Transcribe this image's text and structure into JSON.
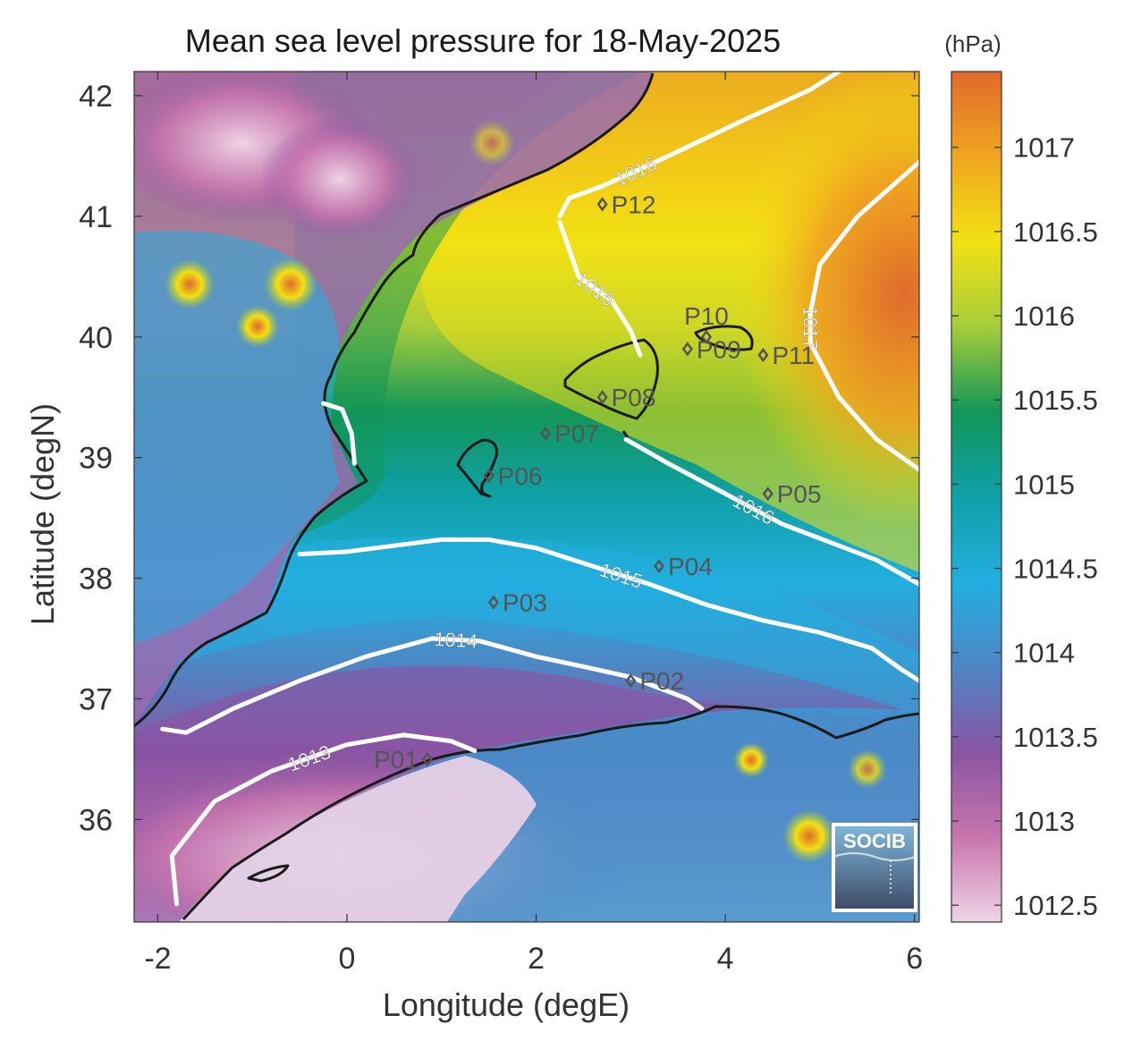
{
  "title": "Mean sea level pressure for 18-May-2025",
  "xlabel": "Longitude (degE)",
  "ylabel": "Latitude (degN)",
  "colorbar": {
    "unit": "(hPa)",
    "range": [
      1012.4,
      1017.45
    ],
    "ticks": [
      "1012.5",
      "1013",
      "1013.5",
      "1014",
      "1014.5",
      "1015",
      "1015.5",
      "1016",
      "1016.5",
      "1017"
    ],
    "colors": [
      "#efd3e6",
      "#c775ad",
      "#8a55a3",
      "#4e86c4",
      "#22aee0",
      "#0fa1a8",
      "#129658",
      "#a6cc3a",
      "#f2e114",
      "#f0a51f",
      "#e06a2c"
    ]
  },
  "logo": {
    "text": "SOCIB"
  },
  "chart_data": {
    "type": "heatmap",
    "x_ticks": [
      "-2",
      "0",
      "2",
      "4",
      "6"
    ],
    "y_ticks": [
      "36",
      "37",
      "38",
      "39",
      "40",
      "41",
      "42"
    ],
    "xlim": [
      -2.25,
      6.05
    ],
    "ylim": [
      35.15,
      42.2
    ],
    "contours": [
      {
        "label": "1013",
        "level": 1013,
        "points": [
          [
            -1.8,
            35.3
          ],
          [
            -1.85,
            35.7
          ],
          [
            -1.4,
            36.15
          ],
          [
            -0.8,
            36.4
          ],
          [
            0.0,
            36.62
          ],
          [
            0.6,
            36.7
          ],
          [
            1.1,
            36.65
          ],
          [
            1.35,
            36.57
          ]
        ]
      },
      {
        "label": "1014",
        "level": 1014,
        "points": [
          [
            -1.95,
            36.75
          ],
          [
            -1.7,
            36.72
          ],
          [
            -1.2,
            36.92
          ],
          [
            -0.5,
            37.15
          ],
          [
            0.2,
            37.35
          ],
          [
            0.9,
            37.5
          ],
          [
            1.4,
            37.48
          ],
          [
            2.0,
            37.35
          ],
          [
            2.6,
            37.25
          ],
          [
            3.0,
            37.18
          ],
          [
            3.6,
            37.0
          ],
          [
            3.75,
            36.92
          ]
        ]
      },
      {
        "label": "1015",
        "level": 1015,
        "points": [
          [
            -0.5,
            38.2
          ],
          [
            0.0,
            38.22
          ],
          [
            0.6,
            38.28
          ],
          [
            1.0,
            38.32
          ],
          [
            1.5,
            38.32
          ],
          [
            2.0,
            38.25
          ],
          [
            2.6,
            38.1
          ],
          [
            3.2,
            37.95
          ],
          [
            3.8,
            37.78
          ],
          [
            4.4,
            37.65
          ],
          [
            5.0,
            37.55
          ],
          [
            5.55,
            37.42
          ],
          [
            5.85,
            37.25
          ],
          [
            6.05,
            37.15
          ]
        ]
      },
      {
        "label": "1016",
        "level": 1016,
        "points": [
          [
            2.25,
            41.0
          ],
          [
            2.35,
            41.15
          ],
          [
            2.7,
            41.25
          ],
          [
            3.4,
            41.5
          ],
          [
            4.2,
            41.8
          ],
          [
            4.9,
            42.05
          ],
          [
            5.2,
            42.2
          ]
        ]
      },
      {
        "label": "1016",
        "level": 1016,
        "points": [
          [
            2.25,
            40.95
          ],
          [
            2.45,
            40.5
          ],
          [
            2.8,
            40.3
          ],
          [
            3.0,
            40.05
          ],
          [
            3.1,
            39.85
          ]
        ]
      },
      {
        "label": "1016",
        "level": 1016,
        "points": [
          [
            2.95,
            39.15
          ],
          [
            3.4,
            38.95
          ],
          [
            4.0,
            38.7
          ],
          [
            4.6,
            38.45
          ],
          [
            5.1,
            38.3
          ],
          [
            5.6,
            38.15
          ],
          [
            6.05,
            37.95
          ]
        ]
      },
      {
        "label": "1017",
        "level": 1017,
        "points": [
          [
            6.05,
            41.45
          ],
          [
            5.4,
            41.0
          ],
          [
            5.0,
            40.6
          ],
          [
            4.9,
            40.2
          ],
          [
            4.9,
            39.95
          ],
          [
            5.2,
            39.5
          ],
          [
            5.6,
            39.15
          ],
          [
            6.05,
            38.9
          ]
        ]
      },
      {
        "label": "",
        "level": 1015.5,
        "points": [
          [
            -0.25,
            39.45
          ],
          [
            -0.05,
            39.4
          ],
          [
            0.05,
            39.2
          ],
          [
            0.08,
            38.95
          ]
        ]
      }
    ],
    "stations": [
      {
        "label": "P01",
        "lon": 0.85,
        "lat": 36.5
      },
      {
        "label": "P02",
        "lon": 3.0,
        "lat": 37.15
      },
      {
        "label": "P03",
        "lon": 1.55,
        "lat": 37.8
      },
      {
        "label": "P04",
        "lon": 3.3,
        "lat": 38.1
      },
      {
        "label": "P05",
        "lon": 4.45,
        "lat": 38.7
      },
      {
        "label": "P06",
        "lon": 1.5,
        "lat": 38.85
      },
      {
        "label": "P07",
        "lon": 2.1,
        "lat": 39.2
      },
      {
        "label": "P08",
        "lon": 2.7,
        "lat": 39.5
      },
      {
        "label": "P09",
        "lon": 3.6,
        "lat": 39.9
      },
      {
        "label": "P10",
        "lon": 3.8,
        "lat": 40.0
      },
      {
        "label": "P11",
        "lon": 4.4,
        "lat": 39.85
      },
      {
        "label": "P12",
        "lon": 2.7,
        "lat": 41.1
      }
    ]
  }
}
